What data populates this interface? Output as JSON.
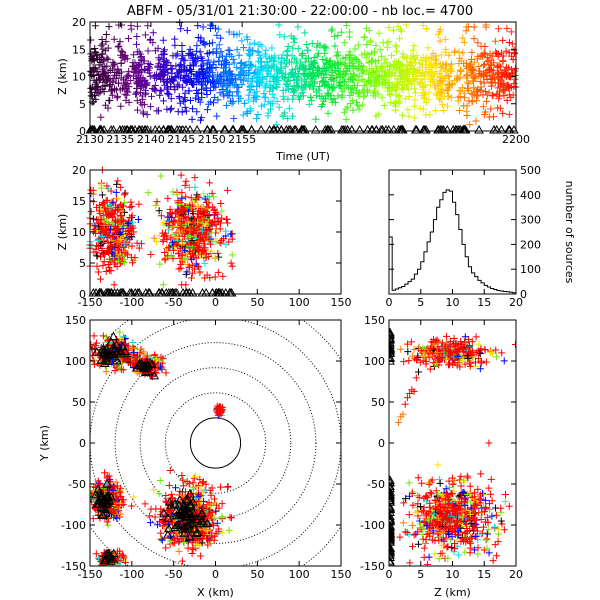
{
  "chart_data": [
    {
      "panel": "time-height",
      "type": "scatter",
      "title": "ABFM - 05/31/01 21:30:00 - 22:00:00 - nb loc.=    4700",
      "xlabel": "Time (UT)",
      "ylabel": "Z (km)",
      "xlim": [
        2130,
        2200
      ],
      "ylim": [
        0,
        20
      ],
      "xticks": [
        "2130",
        "2135",
        "2140",
        "2145",
        "2150",
        "2155",
        "2200"
      ],
      "yticks": [
        "0",
        "5",
        "10",
        "15",
        "20"
      ],
      "color_scale": "time (purple to red)",
      "source_altitude_range_km": [
        2,
        18
      ],
      "station_marker_altitude_km": 0
    },
    {
      "panel": "x-z",
      "type": "scatter",
      "xlabel": "",
      "ylabel": "Z (km)",
      "xlim": [
        -150,
        150
      ],
      "ylim": [
        0,
        20
      ],
      "xticks": [
        "-150",
        "-100",
        "-50",
        "0",
        "50",
        "100",
        "150"
      ],
      "yticks": [
        "0",
        "5",
        "10",
        "15",
        "20"
      ],
      "clusters": [
        {
          "x_range": [
            -150,
            -95
          ],
          "z_range": [
            2,
            20
          ],
          "center_x": -120,
          "center_z": 10
        },
        {
          "x_range": [
            -70,
            10
          ],
          "z_range": [
            2,
            20
          ],
          "center_x": -25,
          "center_z": 10
        }
      ]
    },
    {
      "panel": "altitude-histogram",
      "type": "line",
      "ylabel": "number of sources",
      "xlim": [
        0,
        20
      ],
      "ylim": [
        0,
        500
      ],
      "xticks": [
        "0",
        "5",
        "10",
        "15",
        "20"
      ],
      "yticks": [
        "0",
        "100",
        "200",
        "300",
        "400",
        "500"
      ],
      "x": [
        0.25,
        0.75,
        1.25,
        1.75,
        2.25,
        2.75,
        3.25,
        3.75,
        4.25,
        4.75,
        5.25,
        5.75,
        6.25,
        6.75,
        7.25,
        7.75,
        8.25,
        8.75,
        9.25,
        9.75,
        10.25,
        10.75,
        11.25,
        11.75,
        12.25,
        12.75,
        13.25,
        13.75,
        14.25,
        14.75,
        15.25,
        15.75,
        16.25,
        16.75,
        17.25,
        17.75,
        18.25,
        18.75,
        19.25,
        19.75
      ],
      "values": [
        230,
        15,
        20,
        25,
        30,
        40,
        50,
        60,
        80,
        100,
        130,
        170,
        210,
        250,
        300,
        350,
        380,
        410,
        420,
        415,
        370,
        320,
        260,
        200,
        150,
        110,
        85,
        70,
        55,
        45,
        35,
        28,
        22,
        18,
        14,
        12,
        10,
        9,
        7,
        5
      ]
    },
    {
      "panel": "plan-view",
      "type": "scatter",
      "xlabel": "X (km)",
      "ylabel": "Y (km)",
      "xlim": [
        -150,
        150
      ],
      "ylim": [
        -150,
        150
      ],
      "xticks": [
        "-150",
        "-100",
        "-50",
        "0",
        "50",
        "100",
        "150"
      ],
      "yticks": [
        "-150",
        "-100",
        "-50",
        "0",
        "50",
        "100",
        "150"
      ],
      "range_rings_km": [
        30,
        60,
        90,
        120,
        150,
        180
      ],
      "clusters": [
        {
          "center": [
            -120,
            110
          ],
          "spread": [
            20,
            15
          ]
        },
        {
          "center": [
            -80,
            95
          ],
          "spread": [
            15,
            10
          ]
        },
        {
          "center": [
            -30,
            -90
          ],
          "spread": [
            30,
            30
          ]
        },
        {
          "center": [
            -130,
            -70
          ],
          "spread": [
            15,
            20
          ]
        },
        {
          "center": [
            -125,
            -140
          ],
          "spread": [
            12,
            8
          ]
        },
        {
          "center": [
            5,
            40
          ],
          "spread": [
            3,
            5
          ]
        }
      ]
    },
    {
      "panel": "y-z",
      "type": "scatter",
      "xlabel": "Z (km)",
      "ylabel": "",
      "xlim": [
        0,
        20
      ],
      "ylim": [
        -150,
        150
      ],
      "xticks": [
        "0",
        "5",
        "10",
        "15",
        "20"
      ],
      "yticks": [
        "-150",
        "-100",
        "-50",
        "0",
        "50",
        "100",
        "150"
      ]
    }
  ]
}
